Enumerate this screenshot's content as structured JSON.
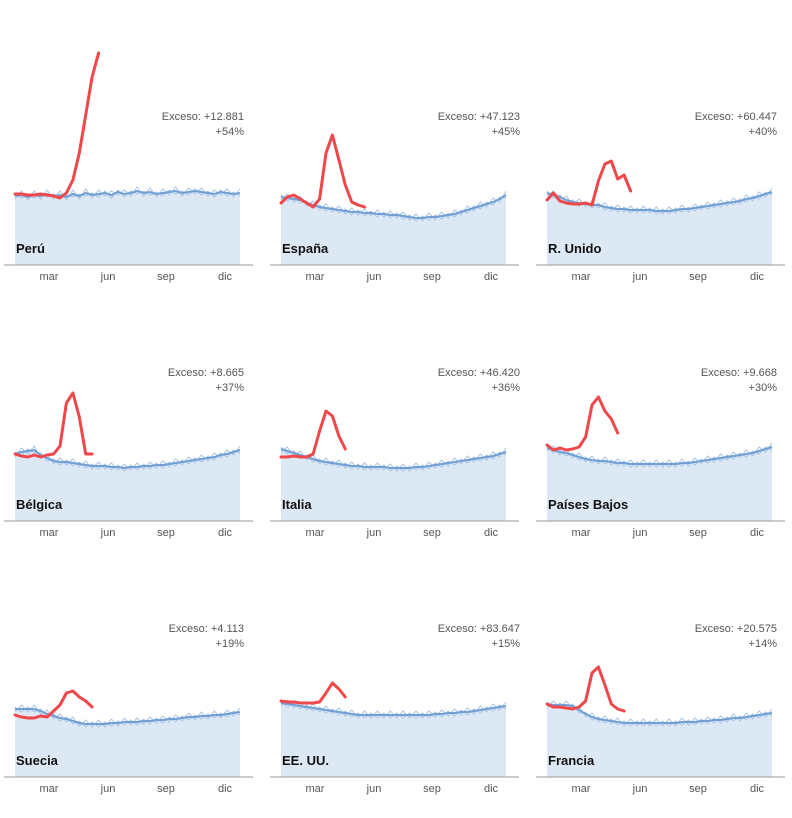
{
  "chart_data": [
    {
      "type": "line",
      "country": "Perú",
      "excess_label": "Exceso: +12.881",
      "excess_pct": "+54%",
      "x_ticks": [
        "mar",
        "jun",
        "sep",
        "dic"
      ],
      "baseline": [
        69,
        70,
        68,
        70,
        69,
        71,
        69,
        70,
        68,
        71,
        69,
        72,
        70,
        71,
        72,
        70,
        73,
        71,
        72,
        74,
        72,
        73,
        71,
        72,
        73,
        74,
        72,
        73,
        74,
        73,
        72,
        71,
        73,
        72,
        71,
        72
      ],
      "current": [
        71,
        71,
        70,
        70,
        71,
        70,
        69,
        67,
        72,
        85,
        112,
        150,
        188,
        212
      ]
    },
    {
      "type": "line",
      "country": "España",
      "excess_label": "Exceso: +47.123",
      "excess_pct": "+45%",
      "x_ticks": [
        "mar",
        "jun",
        "sep",
        "dic"
      ],
      "baseline": [
        68,
        67,
        66,
        65,
        62,
        60,
        58,
        57,
        56,
        55,
        54,
        53,
        53,
        52,
        52,
        51,
        51,
        50,
        50,
        49,
        48,
        47,
        47,
        48,
        48,
        49,
        50,
        51,
        53,
        55,
        57,
        59,
        61,
        63,
        66,
        70
      ],
      "current": [
        62,
        68,
        70,
        66,
        62,
        58,
        66,
        112,
        130,
        105,
        80,
        63,
        60,
        58
      ]
    },
    {
      "type": "line",
      "country": "R. Unido",
      "excess_label": "Exceso: +60.447",
      "excess_pct": "+40%",
      "x_ticks": [
        "mar",
        "jun",
        "sep",
        "dic"
      ],
      "baseline": [
        72,
        70,
        68,
        65,
        63,
        62,
        61,
        60,
        60,
        58,
        57,
        56,
        56,
        55,
        55,
        55,
        55,
        54,
        54,
        54,
        55,
        56,
        56,
        57,
        58,
        59,
        60,
        61,
        62,
        63,
        64,
        66,
        67,
        69,
        71,
        73
      ],
      "current": [
        65,
        72,
        64,
        62,
        61,
        61,
        62,
        60,
        84,
        101,
        104,
        86,
        90,
        74
      ]
    },
    {
      "type": "line",
      "country": "Bélgica",
      "excess_label": "Exceso: +8.665",
      "excess_pct": "+37%",
      "x_ticks": [
        "mar",
        "jun",
        "sep",
        "dic"
      ],
      "baseline": [
        67,
        69,
        70,
        71,
        66,
        63,
        60,
        59,
        59,
        58,
        57,
        56,
        55,
        55,
        55,
        54,
        54,
        53,
        54,
        54,
        55,
        55,
        56,
        56,
        57,
        58,
        59,
        60,
        61,
        62,
        63,
        64,
        66,
        67,
        69,
        71
      ],
      "current": [
        67,
        65,
        64,
        66,
        64,
        66,
        67,
        75,
        118,
        128,
        104,
        67,
        67
      ]
    },
    {
      "type": "line",
      "country": "Italia",
      "excess_label": "Exceso: +46.420",
      "excess_pct": "+36%",
      "x_ticks": [
        "mar",
        "jun",
        "sep",
        "dic"
      ],
      "baseline": [
        72,
        70,
        68,
        66,
        64,
        62,
        60,
        59,
        58,
        57,
        56,
        55,
        55,
        54,
        54,
        54,
        54,
        53,
        53,
        53,
        53,
        54,
        54,
        55,
        56,
        57,
        58,
        59,
        60,
        61,
        62,
        63,
        64,
        65,
        67,
        69
      ],
      "current": [
        64,
        64,
        65,
        64,
        64,
        67,
        90,
        110,
        105,
        85,
        72
      ]
    },
    {
      "type": "line",
      "country": "Países Bajos",
      "excess_label": "Exceso: +9.668",
      "excess_pct": "+30%",
      "x_ticks": [
        "mar",
        "jun",
        "sep",
        "dic"
      ],
      "baseline": [
        73,
        71,
        69,
        68,
        66,
        64,
        62,
        61,
        60,
        60,
        59,
        58,
        58,
        57,
        57,
        57,
        57,
        57,
        57,
        57,
        57,
        58,
        58,
        59,
        60,
        61,
        62,
        63,
        64,
        65,
        66,
        67,
        68,
        70,
        72,
        74
      ],
      "current": [
        76,
        71,
        73,
        71,
        72,
        74,
        84,
        116,
        124,
        110,
        102,
        88
      ]
    },
    {
      "type": "line",
      "country": "Suecia",
      "excess_label": "Exceso: +4.113",
      "excess_pct": "+19%",
      "x_ticks": [
        "mar",
        "jun",
        "sep",
        "dic"
      ],
      "baseline": [
        68,
        68,
        68,
        68,
        66,
        63,
        61,
        59,
        58,
        56,
        54,
        53,
        53,
        53,
        53,
        54,
        54,
        55,
        55,
        55,
        56,
        56,
        57,
        57,
        58,
        58,
        59,
        60,
        60,
        61,
        61,
        62,
        62,
        63,
        64,
        65
      ],
      "current": [
        62,
        60,
        59,
        59,
        61,
        60,
        66,
        72,
        84,
        86,
        80,
        76,
        70
      ]
    },
    {
      "type": "line",
      "country": "EE. UU.",
      "excess_label": "Exceso: +83.647",
      "excess_pct": "+15%",
      "x_ticks": [
        "mar",
        "jun",
        "sep",
        "dic"
      ],
      "baseline": [
        74,
        73,
        72,
        71,
        70,
        69,
        68,
        67,
        66,
        65,
        64,
        63,
        62,
        62,
        62,
        62,
        62,
        62,
        62,
        62,
        62,
        62,
        62,
        62,
        63,
        63,
        64,
        64,
        65,
        65,
        66,
        67,
        68,
        69,
        70,
        71
      ],
      "current": [
        76,
        75,
        75,
        74,
        74,
        74,
        75,
        84,
        94,
        88,
        80
      ]
    },
    {
      "type": "line",
      "country": "Francia",
      "excess_label": "Exceso: +20.575",
      "excess_pct": "+14%",
      "x_ticks": [
        "mar",
        "jun",
        "sep",
        "dic"
      ],
      "baseline": [
        73,
        72,
        72,
        72,
        71,
        67,
        63,
        60,
        58,
        57,
        56,
        55,
        54,
        54,
        54,
        54,
        54,
        54,
        54,
        54,
        54,
        55,
        55,
        55,
        56,
        56,
        57,
        57,
        58,
        59,
        59,
        60,
        61,
        62,
        63,
        64
      ],
      "current": [
        73,
        70,
        70,
        69,
        68,
        70,
        76,
        104,
        110,
        92,
        73,
        68,
        66
      ]
    }
  ]
}
